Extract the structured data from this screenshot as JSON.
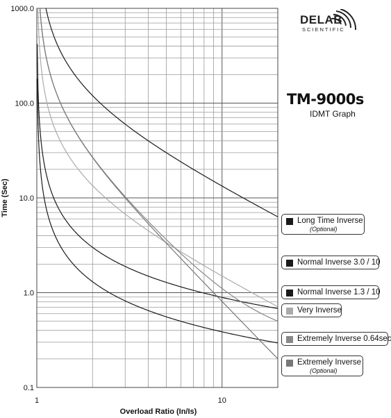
{
  "brand": {
    "name": "DELAB",
    "sub": "SCIENTIFIC"
  },
  "product": {
    "title": "TM-9000s",
    "subtitle": "IDMT Graph"
  },
  "chart_data": {
    "type": "line",
    "x_scale": "log",
    "y_scale": "log",
    "xlim": [
      1,
      20
    ],
    "ylim": [
      0.1,
      1000
    ],
    "xlabel": "Overload Ratio  (In/Is)",
    "ylabel": "Time (Sec)",
    "x_tick_labels": [
      {
        "value": 1,
        "label": "1"
      },
      {
        "value": 10,
        "label": "10"
      }
    ],
    "y_tick_labels": [
      {
        "value": 0.1,
        "label": "0.1"
      },
      {
        "value": 1,
        "label": "1.0"
      },
      {
        "value": 10,
        "label": "10.0"
      },
      {
        "value": 100,
        "label": "100.0"
      },
      {
        "value": 1000,
        "label": "1000.0"
      }
    ],
    "grid": true,
    "legend_position": "right",
    "series": [
      {
        "name": "Long Time Inverse",
        "note": "(Optional)",
        "color": "#1a1a1a",
        "k": 120,
        "alpha": 1,
        "tms": 1
      },
      {
        "name": "Normal Inverse 3.0 / 10",
        "note": "",
        "color": "#1a1a1a",
        "k": 0.14,
        "alpha": 0.02,
        "tms": 0.3
      },
      {
        "name": "Normal Inverse 1.3 / 10",
        "note": "",
        "color": "#1a1a1a",
        "k": 0.14,
        "alpha": 0.02,
        "tms": 0.13
      },
      {
        "name": "Very Inverse",
        "note": "",
        "color": "#aaaaaa",
        "k": 13.5,
        "alpha": 1,
        "tms": 1
      },
      {
        "name": "Extremely Inverse 0.64sec",
        "note": "",
        "color": "#888888",
        "k": 80,
        "alpha": 2,
        "tms": 1,
        "offset": 0.3
      },
      {
        "name": "Extremely Inverse",
        "note": "(Optional)",
        "color": "#777777",
        "k": 80,
        "alpha": 2,
        "tms": 1
      }
    ]
  }
}
